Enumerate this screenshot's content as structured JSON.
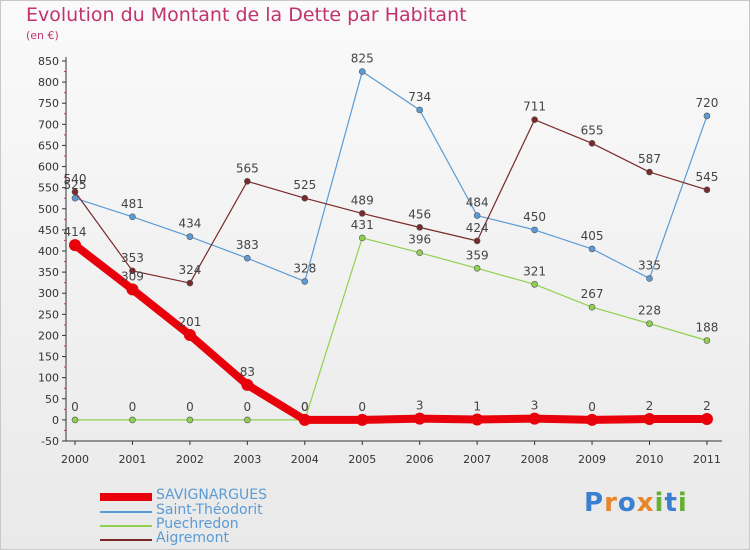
{
  "title": "Evolution du Montant de la Dette par Habitant",
  "subtitle": "(en €)",
  "logo": {
    "letters": [
      "P",
      "r",
      "o",
      "x",
      "i",
      "t",
      "i"
    ],
    "colors": [
      "#3a7fd0",
      "#e8862a",
      "#3a7fd0",
      "#e8862a",
      "#66b032",
      "#3a7fd0",
      "#66b032"
    ]
  },
  "chart_data": {
    "type": "line",
    "x": [
      "2000",
      "2001",
      "2002",
      "2003",
      "2004",
      "2005",
      "2006",
      "2007",
      "2008",
      "2009",
      "2010",
      "2011"
    ],
    "ylim": [
      -50,
      850
    ],
    "yticks": [
      "-50",
      "0",
      "50",
      "100",
      "150",
      "200",
      "250",
      "300",
      "350",
      "400",
      "450",
      "500",
      "550",
      "600",
      "650",
      "700",
      "750",
      "800",
      "850"
    ],
    "grid": false,
    "legend_position": "bottom-left",
    "series": [
      {
        "name": "SAVIGNARGUES",
        "color": "#e8000a",
        "thick": true,
        "values": [
          414,
          309,
          201,
          83,
          0,
          0,
          3,
          1,
          3,
          0,
          2,
          2
        ],
        "labels": [
          "414",
          "309",
          "201",
          "83",
          "0",
          "0",
          "3",
          "1",
          "3",
          "0",
          "2",
          "2"
        ]
      },
      {
        "name": "Saint-Théodorit",
        "color": "#5b9bd5",
        "thick": false,
        "values": [
          525,
          481,
          434,
          383,
          328,
          825,
          734,
          484,
          450,
          405,
          335,
          720
        ],
        "labels": [
          "525",
          "481",
          "434",
          "383",
          "328",
          "825",
          "734",
          "484",
          "450",
          "405",
          "335",
          "720"
        ]
      },
      {
        "name": "Puechredon",
        "color": "#8fd14f",
        "thick": false,
        "values": [
          0,
          0,
          0,
          0,
          0,
          431,
          396,
          359,
          321,
          267,
          228,
          188
        ],
        "labels": [
          "0",
          "0",
          "0",
          "0",
          "0",
          "431",
          "396",
          "359",
          "321",
          "267",
          "228",
          "188"
        ]
      },
      {
        "name": "Aigremont",
        "color": "#7b2a2a",
        "thick": false,
        "values": [
          540,
          353,
          324,
          565,
          525,
          489,
          456,
          424,
          711,
          655,
          587,
          545
        ],
        "labels": [
          "540",
          "353",
          "324",
          "565",
          "525",
          "489",
          "456",
          "424",
          "711",
          "655",
          "587",
          "545"
        ]
      }
    ]
  }
}
